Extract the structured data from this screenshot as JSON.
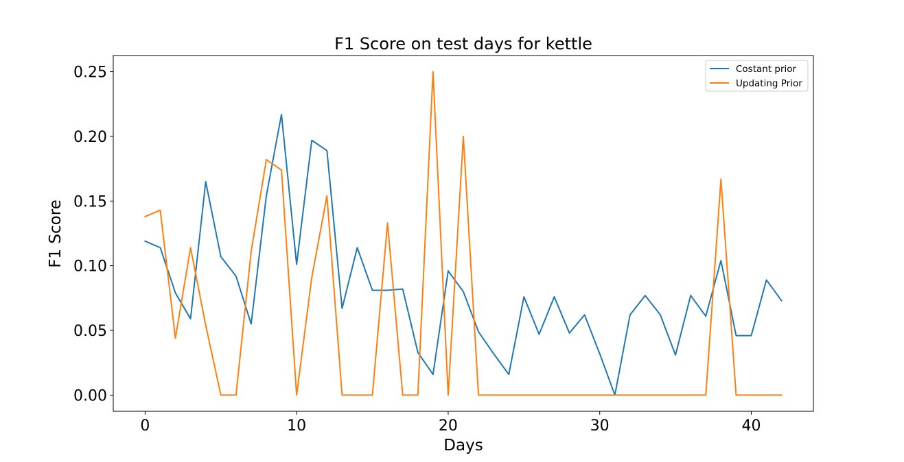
{
  "chart_data": {
    "type": "line",
    "title": "F1 Score on test days for kettle",
    "xlabel": "Days",
    "ylabel": "F1 Score",
    "xlim": [
      -2.1,
      44.1
    ],
    "ylim": [
      -0.0125,
      0.2625
    ],
    "xticks": [
      0,
      10,
      20,
      30,
      40
    ],
    "xtick_labels": [
      "0",
      "10",
      "20",
      "30",
      "40"
    ],
    "yticks": [
      0.0,
      0.05,
      0.1,
      0.15,
      0.2,
      0.25
    ],
    "ytick_labels": [
      "0.00",
      "0.05",
      "0.10",
      "0.15",
      "0.20",
      "0.25"
    ],
    "grid": false,
    "legend_position": "top-right",
    "x": [
      0,
      1,
      2,
      3,
      4,
      5,
      6,
      7,
      8,
      9,
      10,
      11,
      12,
      13,
      14,
      15,
      16,
      17,
      18,
      19,
      20,
      21,
      22,
      23,
      24,
      25,
      26,
      27,
      28,
      29,
      30,
      31,
      32,
      33,
      34,
      35,
      36,
      37,
      38,
      39,
      40,
      41,
      42
    ],
    "series": [
      {
        "name": "Costant prior",
        "color": "#1f77b4",
        "values": [
          0.119,
          0.114,
          0.079,
          0.059,
          0.165,
          0.107,
          0.092,
          0.055,
          0.154,
          0.217,
          0.101,
          0.197,
          0.189,
          0.067,
          0.114,
          0.081,
          0.081,
          0.082,
          0.033,
          0.016,
          0.096,
          0.08,
          0.049,
          0.032,
          0.016,
          0.076,
          0.047,
          0.076,
          0.048,
          0.062,
          0.032,
          0.0,
          0.062,
          0.077,
          0.062,
          0.031,
          0.077,
          0.061,
          0.104,
          0.046,
          0.046,
          0.089,
          0.073
        ]
      },
      {
        "name": "Updating Prior",
        "color": "#ff7f0e",
        "values": [
          0.138,
          0.143,
          0.044,
          0.114,
          0.054,
          0.0,
          0.0,
          0.111,
          0.182,
          0.174,
          0.0,
          0.091,
          0.154,
          0.0,
          0.0,
          0.0,
          0.133,
          0.0,
          0.0,
          0.25,
          0.0,
          0.2,
          0.0,
          0.0,
          0.0,
          0.0,
          0.0,
          0.0,
          0.0,
          0.0,
          0.0,
          0.0,
          0.0,
          0.0,
          0.0,
          0.0,
          0.0,
          0.0,
          0.167,
          0.0,
          0.0,
          0.0,
          0.0
        ]
      }
    ]
  }
}
